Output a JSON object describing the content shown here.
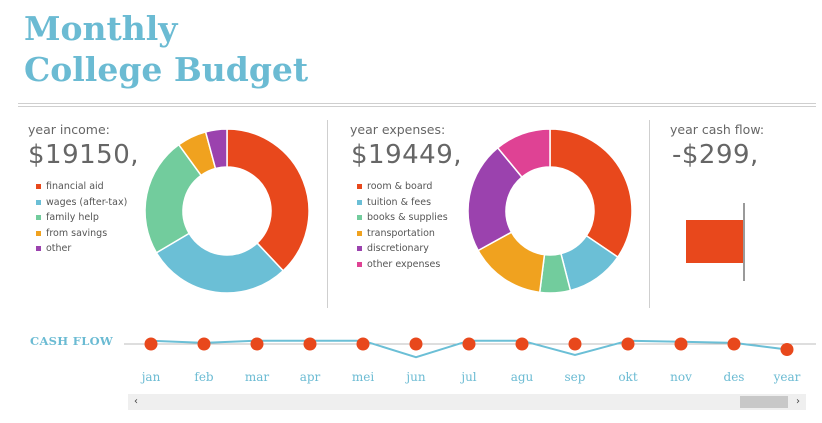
{
  "title": {
    "line1": "Monthly",
    "line2": "College Budget"
  },
  "income": {
    "label": "year income:",
    "value": "$19150,",
    "legend": [
      {
        "label": "financial aid",
        "color": "#e8481c"
      },
      {
        "label": "wages (after-tax)",
        "color": "#6bbfd6"
      },
      {
        "label": "family help",
        "color": "#72cc9d"
      },
      {
        "label": "from savings",
        "color": "#f0a21f"
      },
      {
        "label": "other",
        "color": "#9b42ae"
      }
    ]
  },
  "expenses": {
    "label": "year expenses:",
    "value": "$19449,",
    "legend": [
      {
        "label": "room & board",
        "color": "#e8481c"
      },
      {
        "label": "tuition & fees",
        "color": "#6bbfd6"
      },
      {
        "label": "books & supplies",
        "color": "#72cc9d"
      },
      {
        "label": "transportation",
        "color": "#f0a21f"
      },
      {
        "label": "discretionary",
        "color": "#9b42ae"
      },
      {
        "label": "other expenses",
        "color": "#df4294"
      }
    ]
  },
  "cashflow_summary": {
    "label": "year cash flow:",
    "value": "-$299,",
    "bar_color": "#e8481c"
  },
  "chart_data": [
    {
      "type": "pie",
      "categories": [
        "financial aid",
        "wages (after-tax)",
        "family help",
        "from savings",
        "other"
      ],
      "values": [
        0.38,
        0.285,
        0.235,
        0.058,
        0.042
      ],
      "colors": [
        "#e8481c",
        "#6bbfd6",
        "#72cc9d",
        "#f0a21f",
        "#9b42ae"
      ]
    },
    {
      "type": "pie",
      "categories": [
        "room & board",
        "tuition & fees",
        "books & supplies",
        "transportation",
        "discretionary",
        "other expenses"
      ],
      "values": [
        0.345,
        0.115,
        0.06,
        0.15,
        0.22,
        0.11
      ],
      "colors": [
        "#e8481c",
        "#6bbfd6",
        "#72cc9d",
        "#f0a21f",
        "#9b42ae",
        "#df4294"
      ]
    },
    {
      "type": "line",
      "title": "CASH FLOW",
      "categories": [
        "jan",
        "feb",
        "mar",
        "apr",
        "mei",
        "jun",
        "jul",
        "agu",
        "sep",
        "okt",
        "nov",
        "des",
        "year"
      ],
      "series": [
        {
          "values": [
            3,
            1,
            3,
            3,
            3,
            -12,
            3,
            3,
            -10,
            3,
            2,
            1,
            -5
          ],
          "color": "#6bbfd6"
        }
      ],
      "marker_values": [
        0,
        0,
        0,
        0,
        0,
        0,
        0,
        0,
        0,
        0,
        0,
        0,
        -5
      ],
      "marker_color": "#e8481c",
      "ylim": [
        -20,
        20
      ]
    }
  ],
  "scrollbar": {
    "left_arrow": "‹",
    "right_arrow": "›"
  }
}
